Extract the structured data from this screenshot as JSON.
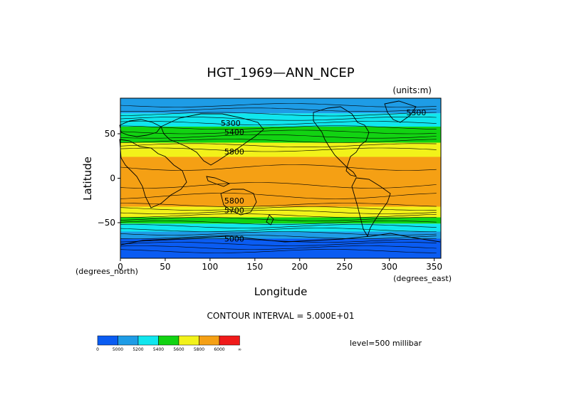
{
  "title": "HGT_1969—ANN_NCEP",
  "units": "(units:m)",
  "contour_interval": "CONTOUR INTERVAL = 5.000E+01",
  "level": "level=500 millibar",
  "map": {
    "xlabel": "Longitude",
    "ylabel": "Latitude",
    "x_units": "(degrees_east)",
    "y_units": "(degrees_north)",
    "x_ticks": [
      "0",
      "50",
      "100",
      "150",
      "200",
      "250",
      "300",
      "350"
    ],
    "y_ticks": [
      "50",
      "0",
      "−50"
    ],
    "x_tick_values": [
      0,
      50,
      100,
      150,
      200,
      250,
      300,
      350
    ],
    "y_tick_values": [
      50,
      0,
      -50
    ],
    "xlim": [
      0,
      357.5
    ],
    "ylim": [
      -90,
      90
    ]
  },
  "colorbar": {
    "colors": [
      "#0a5cf2",
      "#1e9ce6",
      "#10e6ee",
      "#12d312",
      "#f2f21a",
      "#f5a014",
      "#f01a1a"
    ],
    "labels": [
      "0",
      "5000",
      "5200",
      "5400",
      "5600",
      "5800",
      "6000",
      "∞"
    ]
  },
  "bands": [
    {
      "lat": [
        -90,
        -68
      ],
      "color": "#0a5cf2"
    },
    {
      "lat": [
        -68,
        -60
      ],
      "color": "#1e9ce6"
    },
    {
      "lat": [
        -60,
        -51
      ],
      "color": "#10e6ee"
    },
    {
      "lat": [
        -51,
        -44
      ],
      "color": "#12d312"
    },
    {
      "lat": [
        -44,
        -32
      ],
      "color": "#f2f21a"
    },
    {
      "lat": [
        -32,
        24
      ],
      "color": "#f5a014"
    },
    {
      "lat": [
        24,
        40
      ],
      "color": "#f2f21a"
    },
    {
      "lat": [
        40,
        58
      ],
      "color": "#12d312"
    },
    {
      "lat": [
        58,
        73
      ],
      "color": "#10e6ee"
    },
    {
      "lat": [
        73,
        90
      ],
      "color": "#1e9ce6"
    }
  ],
  "contour_labels": [
    {
      "text": "5300",
      "lon": 123,
      "lat": 62
    },
    {
      "text": "5400",
      "lon": 127,
      "lat": 52
    },
    {
      "text": "5800",
      "lon": 127,
      "lat": 30
    },
    {
      "text": "5300",
      "lon": 330,
      "lat": 74
    },
    {
      "text": "5800",
      "lon": 127,
      "lat": -25
    },
    {
      "text": "5700",
      "lon": 127,
      "lat": -36
    },
    {
      "text": "5000",
      "lon": 127,
      "lat": -68
    }
  ]
}
